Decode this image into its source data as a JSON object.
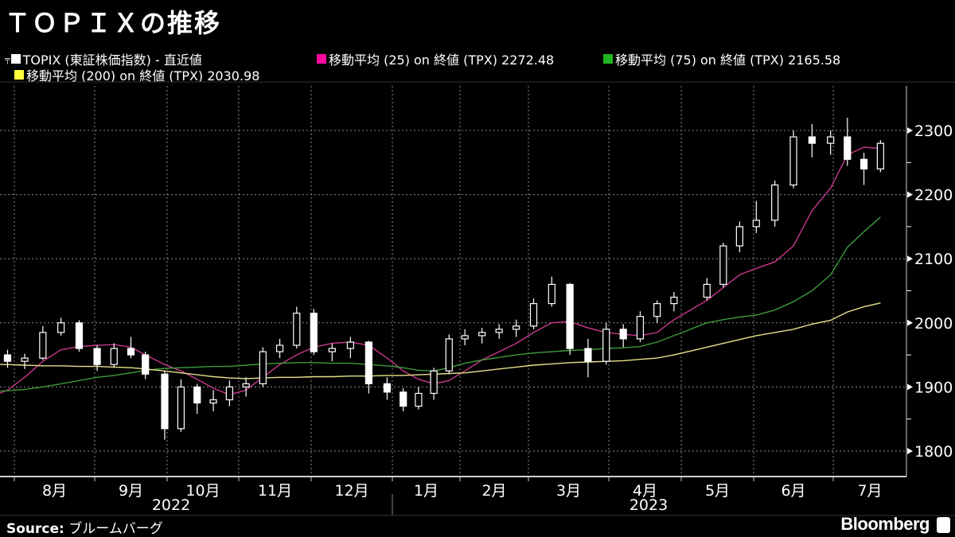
{
  "title": "ＴＯＰＩＸの推移",
  "legend": [
    {
      "label": "TOPIX (東証株価指数) - 直近値",
      "color": "#ffffff",
      "icon": "candlestick-icon"
    },
    {
      "label": "移動平均 (25) on 終値 (TPX) 2272.48",
      "color": "#ff0aa0"
    },
    {
      "label": "移動平均 (75) on 終値 (TPX) 2165.58",
      "color": "#22b522"
    },
    {
      "label": "移動平均 (200) on 終値 (TPX) 2030.98",
      "color": "#ffff3c"
    }
  ],
  "footer": {
    "source_label": "Source:",
    "source": "ブルームバーグ",
    "brand": "Bloomberg"
  },
  "chart_data": {
    "type": "candlestick",
    "title": "ＴＯＰＩＸの推移",
    "y_axis": {
      "ticks": [
        1800,
        1900,
        2000,
        2100,
        2200,
        2300
      ],
      "labels": [
        "1800",
        "1900",
        "2000",
        "2100",
        "2200",
        "2300"
      ],
      "range": [
        1780,
        2350
      ],
      "position": "right"
    },
    "x_axis": {
      "months": [
        {
          "label": "8月",
          "month": "2022-08"
        },
        {
          "label": "9月",
          "month": "2022-09"
        },
        {
          "label": "10月",
          "month": "2022-10"
        },
        {
          "label": "11月",
          "month": "2022-11"
        },
        {
          "label": "12月",
          "month": "2022-12"
        },
        {
          "label": "1月",
          "month": "2023-01"
        },
        {
          "label": "2月",
          "month": "2023-02"
        },
        {
          "label": "3月",
          "month": "2023-03"
        },
        {
          "label": "4月",
          "month": "2023-04"
        },
        {
          "label": "5月",
          "month": "2023-05"
        },
        {
          "label": "6月",
          "month": "2023-06"
        },
        {
          "label": "7月",
          "month": "2023-07"
        }
      ],
      "years": [
        "2022",
        "2023"
      ]
    },
    "grid": true,
    "colors": {
      "candle": "#ffffff",
      "ma25": "#c8388e",
      "ma75": "#3c9a3c",
      "ma200": "#e6e08a"
    },
    "candles_columns": [
      "date",
      "open",
      "high",
      "low",
      "close"
    ],
    "candles": [
      [
        "2022-07-29",
        1950,
        1958,
        1930,
        1940
      ],
      [
        "2022-08-05",
        1940,
        1952,
        1928,
        1945
      ],
      [
        "2022-08-12",
        1945,
        1995,
        1942,
        1985
      ],
      [
        "2022-08-19",
        1985,
        2008,
        1980,
        2000
      ],
      [
        "2022-08-26",
        2000,
        2004,
        1955,
        1960
      ],
      [
        "2022-09-02",
        1960,
        1965,
        1925,
        1935
      ],
      [
        "2022-09-09",
        1935,
        1968,
        1930,
        1960
      ],
      [
        "2022-09-16",
        1960,
        1978,
        1945,
        1950
      ],
      [
        "2022-09-22",
        1950,
        1955,
        1912,
        1920
      ],
      [
        "2022-09-30",
        1920,
        1925,
        1818,
        1835
      ],
      [
        "2022-10-07",
        1835,
        1912,
        1830,
        1900
      ],
      [
        "2022-10-14",
        1900,
        1905,
        1858,
        1875
      ],
      [
        "2022-10-21",
        1875,
        1895,
        1862,
        1880
      ],
      [
        "2022-10-28",
        1880,
        1910,
        1870,
        1900
      ],
      [
        "2022-11-04",
        1900,
        1915,
        1885,
        1905
      ],
      [
        "2022-11-11",
        1905,
        1962,
        1900,
        1955
      ],
      [
        "2022-11-18",
        1955,
        1975,
        1945,
        1965
      ],
      [
        "2022-11-25",
        1965,
        2025,
        1960,
        2015
      ],
      [
        "2022-12-02",
        2015,
        2022,
        1950,
        1955
      ],
      [
        "2022-12-09",
        1955,
        1968,
        1940,
        1960
      ],
      [
        "2022-12-16",
        1960,
        1978,
        1945,
        1970
      ],
      [
        "2022-12-23",
        1970,
        1972,
        1890,
        1905
      ],
      [
        "2022-12-30",
        1905,
        1915,
        1880,
        1892
      ],
      [
        "2023-01-06",
        1892,
        1898,
        1862,
        1870
      ],
      [
        "2023-01-13",
        1870,
        1900,
        1865,
        1890
      ],
      [
        "2023-01-20",
        1890,
        1930,
        1880,
        1925
      ],
      [
        "2023-01-27",
        1925,
        1982,
        1920,
        1975
      ],
      [
        "2023-02-03",
        1975,
        1990,
        1965,
        1980
      ],
      [
        "2023-02-10",
        1980,
        1992,
        1968,
        1985
      ],
      [
        "2023-02-17",
        1985,
        1998,
        1975,
        1990
      ],
      [
        "2023-02-24",
        1990,
        2005,
        1978,
        1995
      ],
      [
        "2023-03-03",
        1995,
        2038,
        1990,
        2030
      ],
      [
        "2023-03-10",
        2030,
        2072,
        2025,
        2060
      ],
      [
        "2023-03-17",
        2060,
        2062,
        1950,
        1960
      ],
      [
        "2023-03-24",
        1960,
        1975,
        1915,
        1940
      ],
      [
        "2023-03-31",
        1940,
        2000,
        1935,
        1990
      ],
      [
        "2023-04-07",
        1990,
        1998,
        1962,
        1975
      ],
      [
        "2023-04-14",
        1975,
        2018,
        1970,
        2010
      ],
      [
        "2023-04-21",
        2010,
        2035,
        2000,
        2030
      ],
      [
        "2023-04-28",
        2030,
        2048,
        2018,
        2040
      ],
      [
        "2023-05-12",
        2040,
        2070,
        2035,
        2060
      ],
      [
        "2023-05-19",
        2060,
        2125,
        2055,
        2120
      ],
      [
        "2023-05-26",
        2120,
        2158,
        2110,
        2150
      ],
      [
        "2023-06-02",
        2150,
        2190,
        2140,
        2160
      ],
      [
        "2023-06-09",
        2160,
        2222,
        2150,
        2215
      ],
      [
        "2023-06-16",
        2215,
        2300,
        2210,
        2290
      ],
      [
        "2023-06-23",
        2290,
        2310,
        2258,
        2280
      ],
      [
        "2023-06-30",
        2280,
        2300,
        2262,
        2290
      ],
      [
        "2023-07-07",
        2290,
        2320,
        2245,
        2255
      ],
      [
        "2023-07-14",
        2255,
        2265,
        2215,
        2240
      ],
      [
        "2023-07-21",
        2240,
        2285,
        2235,
        2280
      ]
    ],
    "moving_averages_columns": [
      "date",
      "ma25",
      "ma75",
      "ma200"
    ],
    "moving_averages": [
      [
        "2022-07-22",
        1885,
        1893,
        1935
      ],
      [
        "2022-07-29",
        1895,
        1894,
        1935
      ],
      [
        "2022-08-05",
        1915,
        1896,
        1934
      ],
      [
        "2022-08-12",
        1940,
        1900,
        1933
      ],
      [
        "2022-08-19",
        1958,
        1905,
        1933
      ],
      [
        "2022-08-26",
        1963,
        1910,
        1932
      ],
      [
        "2022-09-02",
        1965,
        1915,
        1932
      ],
      [
        "2022-09-09",
        1966,
        1918,
        1931
      ],
      [
        "2022-09-16",
        1962,
        1922,
        1930
      ],
      [
        "2022-09-22",
        1950,
        1926,
        1928
      ],
      [
        "2022-09-30",
        1935,
        1929,
        1925
      ],
      [
        "2022-10-07",
        1925,
        1930,
        1922
      ],
      [
        "2022-10-14",
        1912,
        1931,
        1919
      ],
      [
        "2022-10-21",
        1898,
        1932,
        1916
      ],
      [
        "2022-10-28",
        1888,
        1932,
        1914
      ],
      [
        "2022-11-04",
        1895,
        1934,
        1913
      ],
      [
        "2022-11-11",
        1915,
        1936,
        1914
      ],
      [
        "2022-11-18",
        1935,
        1937,
        1915
      ],
      [
        "2022-11-25",
        1950,
        1938,
        1915
      ],
      [
        "2022-12-02",
        1962,
        1938,
        1916
      ],
      [
        "2022-12-09",
        1968,
        1937,
        1916
      ],
      [
        "2022-12-16",
        1970,
        1937,
        1917
      ],
      [
        "2022-12-23",
        1965,
        1935,
        1917
      ],
      [
        "2022-12-30",
        1945,
        1933,
        1918
      ],
      [
        "2023-01-06",
        1925,
        1930,
        1918
      ],
      [
        "2023-01-13",
        1912,
        1926,
        1919
      ],
      [
        "2023-01-20",
        1905,
        1925,
        1920
      ],
      [
        "2023-01-27",
        1910,
        1930,
        1921
      ],
      [
        "2023-02-03",
        1925,
        1937,
        1922
      ],
      [
        "2023-02-10",
        1942,
        1942,
        1925
      ],
      [
        "2023-02-17",
        1955,
        1946,
        1928
      ],
      [
        "2023-02-24",
        1968,
        1950,
        1931
      ],
      [
        "2023-03-03",
        1985,
        1953,
        1934
      ],
      [
        "2023-03-10",
        2000,
        1955,
        1936
      ],
      [
        "2023-03-17",
        2002,
        1957,
        1938
      ],
      [
        "2023-03-24",
        1992,
        1958,
        1939
      ],
      [
        "2023-03-31",
        1985,
        1960,
        1940
      ],
      [
        "2023-04-07",
        1982,
        1961,
        1941
      ],
      [
        "2023-04-14",
        1980,
        1963,
        1943
      ],
      [
        "2023-04-21",
        1985,
        1970,
        1945
      ],
      [
        "2023-04-28",
        2005,
        1980,
        1950
      ],
      [
        "2023-05-12",
        2035,
        2000,
        1962
      ],
      [
        "2023-05-19",
        2055,
        2005,
        1968
      ],
      [
        "2023-05-26",
        2075,
        2009,
        1974
      ],
      [
        "2023-06-02",
        2085,
        2012,
        1980
      ],
      [
        "2023-06-09",
        2095,
        2020,
        1985
      ],
      [
        "2023-06-16",
        2120,
        2033,
        1990
      ],
      [
        "2023-06-23",
        2175,
        2050,
        1998
      ],
      [
        "2023-06-30",
        2210,
        2075,
        2004
      ],
      [
        "2023-07-07",
        2262,
        2118,
        2017
      ],
      [
        "2023-07-14",
        2274,
        2142,
        2025
      ],
      [
        "2023-07-21",
        2272,
        2165,
        2031
      ]
    ]
  }
}
